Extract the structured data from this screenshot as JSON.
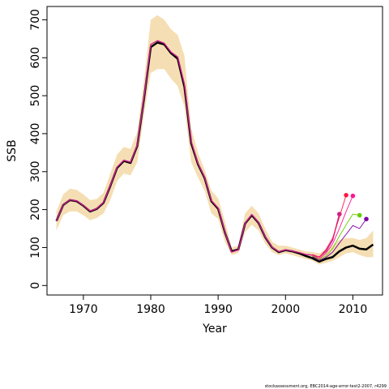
{
  "chart_data": {
    "type": "line",
    "xlabel": "Year",
    "ylabel": "SSB",
    "xlim": [
      1964.6,
      2014.4
    ],
    "ylim": [
      -25,
      735
    ],
    "x_ticks": [
      1970,
      1980,
      1990,
      2000,
      2010
    ],
    "y_ticks": [
      0,
      100,
      200,
      300,
      400,
      500,
      600,
      700
    ],
    "grid": false,
    "legend": "none",
    "colors": {
      "band": "#f5deb3",
      "main": "#000000",
      "retro": [
        "#cd1f90",
        "#ff1744",
        "#ff1493",
        "#66cc00",
        "#7b00a0"
      ],
      "frame": "#000000"
    },
    "band": {
      "x": [
        1966,
        1967,
        1968,
        1969,
        1970,
        1971,
        1972,
        1973,
        1974,
        1975,
        1976,
        1977,
        1978,
        1979,
        1980,
        1981,
        1982,
        1983,
        1984,
        1985,
        1986,
        1987,
        1988,
        1989,
        1990,
        1991,
        1992,
        1993,
        1994,
        1995,
        1996,
        1997,
        1998,
        1999,
        2000,
        2001,
        2002,
        2003,
        2004,
        2005,
        2006,
        2007,
        2008,
        2009,
        2010,
        2011,
        2012,
        2013
      ],
      "upper": [
        195,
        240,
        255,
        252,
        240,
        225,
        228,
        245,
        295,
        345,
        365,
        360,
        405,
        540,
        700,
        712,
        700,
        675,
        660,
        605,
        415,
        350,
        305,
        250,
        230,
        170,
        100,
        105,
        190,
        210,
        190,
        150,
        115,
        105,
        105,
        100,
        95,
        90,
        88,
        85,
        95,
        105,
        120,
        125,
        125,
        120,
        125,
        145
      ],
      "lower": [
        145,
        185,
        195,
        195,
        185,
        172,
        178,
        190,
        225,
        275,
        295,
        290,
        325,
        450,
        560,
        570,
        570,
        545,
        525,
        470,
        325,
        285,
        250,
        190,
        175,
        115,
        80,
        85,
        140,
        160,
        145,
        110,
        88,
        80,
        85,
        80,
        75,
        70,
        65,
        55,
        60,
        65,
        75,
        85,
        88,
        80,
        75,
        75
      ]
    },
    "series": [
      {
        "x": [
          1966,
          1967,
          1968,
          1969,
          1970,
          1971,
          1972,
          1973,
          1974,
          1975,
          1976,
          1977,
          1978,
          1979,
          1980,
          1981,
          1982,
          1983,
          1984,
          1985,
          1986,
          1987,
          1988,
          1989,
          1990,
          1991,
          1992,
          1993,
          1994,
          1995,
          1996,
          1997,
          1998,
          1999,
          2000,
          2001,
          2002,
          2003,
          2004,
          2005,
          2006,
          2007,
          2008,
          2009,
          2010,
          2011,
          2012,
          2013
        ],
        "values": [
          170,
          212,
          225,
          222,
          210,
          195,
          202,
          218,
          262,
          310,
          328,
          323,
          368,
          492,
          628,
          640,
          635,
          612,
          597,
          523,
          375,
          320,
          283,
          222,
          202,
          140,
          90,
          95,
          163,
          185,
          165,
          127,
          100,
          88,
          93,
          90,
          85,
          78,
          72,
          63,
          70,
          75,
          90,
          100,
          105,
          97,
          95,
          108
        ]
      },
      {
        "x": [
          1966,
          1967,
          1968,
          1969,
          1970,
          1971,
          1972,
          1973,
          1974,
          1975,
          1976,
          1977,
          1978,
          1979,
          1980,
          1981,
          1982,
          1983,
          1984,
          1985,
          1986,
          1987,
          1988,
          1989,
          1990,
          1991,
          1992,
          1993,
          1994,
          1995,
          1996,
          1997,
          1998,
          1999,
          2000,
          2001,
          2002,
          2003,
          2004,
          2005,
          2006,
          2007,
          2008
        ],
        "values": [
          170,
          212,
          226,
          223,
          211,
          196,
          203,
          219,
          263,
          312,
          330,
          325,
          370,
          495,
          635,
          645,
          638,
          615,
          602,
          530,
          380,
          322,
          285,
          224,
          204,
          142,
          88,
          94,
          164,
          187,
          166,
          128,
          101,
          89,
          94,
          91,
          87,
          82,
          80,
          75,
          90,
          120,
          188
        ]
      },
      {
        "x": [
          2004,
          2005,
          2006,
          2007,
          2008,
          2009
        ],
        "values": [
          82,
          74,
          95,
          125,
          180,
          238
        ]
      },
      {
        "x": [
          2004,
          2005,
          2006,
          2007,
          2008,
          2009,
          2010
        ],
        "values": [
          80,
          70,
          85,
          110,
          150,
          195,
          236
        ]
      },
      {
        "x": [
          2004,
          2005,
          2006,
          2007,
          2008,
          2009,
          2010,
          2011
        ],
        "values": [
          78,
          68,
          78,
          98,
          130,
          160,
          188,
          185
        ]
      },
      {
        "x": [
          2004,
          2005,
          2006,
          2007,
          2008,
          2009,
          2010,
          2011,
          2012
        ],
        "values": [
          76,
          66,
          74,
          88,
          112,
          135,
          158,
          150,
          175
        ]
      }
    ]
  },
  "footer_text": "stockassessment.org, EBC2014-age-error-test2-2007, r4299"
}
